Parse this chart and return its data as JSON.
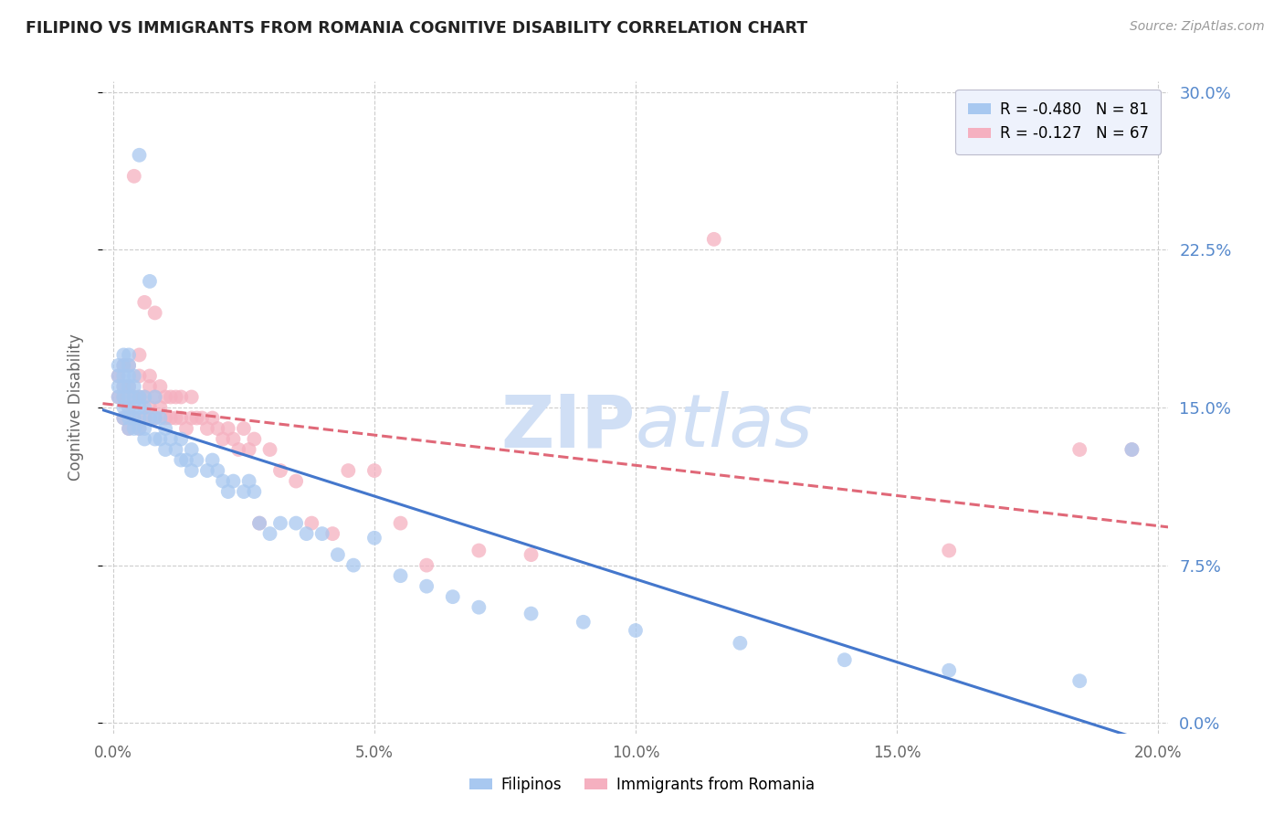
{
  "title": "FILIPINO VS IMMIGRANTS FROM ROMANIA COGNITIVE DISABILITY CORRELATION CHART",
  "source": "Source: ZipAtlas.com",
  "ylabel": "Cognitive Disability",
  "xlabel_ticks": [
    "0.0%",
    "5.0%",
    "10.0%",
    "15.0%",
    "20.0%"
  ],
  "xlabel_vals": [
    0.0,
    0.05,
    0.1,
    0.15,
    0.2
  ],
  "ylabel_ticks": [
    "0.0%",
    "7.5%",
    "15.0%",
    "22.5%",
    "30.0%"
  ],
  "ylabel_vals": [
    0.0,
    0.075,
    0.15,
    0.225,
    0.3
  ],
  "xlim": [
    -0.002,
    0.202
  ],
  "ylim": [
    -0.005,
    0.305
  ],
  "filipino_R": -0.48,
  "filipino_N": 81,
  "romania_R": -0.127,
  "romania_N": 67,
  "filipino_color": "#a8c8f0",
  "romania_color": "#f5b0c0",
  "trendline_filipino_color": "#4477cc",
  "trendline_romania_color": "#e06878",
  "watermark_top": "ZIP",
  "watermark_bottom": "atlas",
  "watermark_color": "#d0dff5",
  "background_color": "#ffffff",
  "grid_color": "#cccccc",
  "title_color": "#222222",
  "axis_label_color": "#666666",
  "right_tick_color": "#5588cc",
  "legend_box_color": "#eef2fc",
  "filipino_x": [
    0.001,
    0.001,
    0.001,
    0.001,
    0.002,
    0.002,
    0.002,
    0.002,
    0.002,
    0.002,
    0.002,
    0.003,
    0.003,
    0.003,
    0.003,
    0.003,
    0.003,
    0.003,
    0.003,
    0.004,
    0.004,
    0.004,
    0.004,
    0.004,
    0.004,
    0.005,
    0.005,
    0.005,
    0.005,
    0.005,
    0.006,
    0.006,
    0.006,
    0.006,
    0.007,
    0.007,
    0.008,
    0.008,
    0.008,
    0.009,
    0.009,
    0.01,
    0.01,
    0.011,
    0.012,
    0.013,
    0.013,
    0.014,
    0.015,
    0.015,
    0.016,
    0.018,
    0.019,
    0.02,
    0.021,
    0.022,
    0.023,
    0.025,
    0.026,
    0.027,
    0.028,
    0.03,
    0.032,
    0.035,
    0.037,
    0.04,
    0.043,
    0.046,
    0.05,
    0.055,
    0.06,
    0.065,
    0.07,
    0.08,
    0.09,
    0.1,
    0.12,
    0.14,
    0.16,
    0.185,
    0.195
  ],
  "filipino_y": [
    0.155,
    0.16,
    0.165,
    0.17,
    0.145,
    0.15,
    0.155,
    0.16,
    0.165,
    0.17,
    0.175,
    0.14,
    0.145,
    0.15,
    0.155,
    0.16,
    0.165,
    0.17,
    0.175,
    0.14,
    0.145,
    0.15,
    0.155,
    0.16,
    0.165,
    0.14,
    0.145,
    0.15,
    0.155,
    0.27,
    0.135,
    0.14,
    0.15,
    0.155,
    0.145,
    0.21,
    0.135,
    0.145,
    0.155,
    0.135,
    0.145,
    0.13,
    0.14,
    0.135,
    0.13,
    0.125,
    0.135,
    0.125,
    0.12,
    0.13,
    0.125,
    0.12,
    0.125,
    0.12,
    0.115,
    0.11,
    0.115,
    0.11,
    0.115,
    0.11,
    0.095,
    0.09,
    0.095,
    0.095,
    0.09,
    0.09,
    0.08,
    0.075,
    0.088,
    0.07,
    0.065,
    0.06,
    0.055,
    0.052,
    0.048,
    0.044,
    0.038,
    0.03,
    0.025,
    0.02,
    0.13
  ],
  "romania_x": [
    0.001,
    0.001,
    0.002,
    0.002,
    0.002,
    0.002,
    0.003,
    0.003,
    0.003,
    0.003,
    0.004,
    0.004,
    0.004,
    0.005,
    0.005,
    0.005,
    0.005,
    0.006,
    0.006,
    0.006,
    0.007,
    0.007,
    0.007,
    0.008,
    0.008,
    0.008,
    0.009,
    0.009,
    0.01,
    0.01,
    0.011,
    0.011,
    0.012,
    0.012,
    0.013,
    0.013,
    0.014,
    0.015,
    0.015,
    0.016,
    0.017,
    0.018,
    0.019,
    0.02,
    0.021,
    0.022,
    0.023,
    0.024,
    0.025,
    0.026,
    0.027,
    0.028,
    0.03,
    0.032,
    0.035,
    0.038,
    0.042,
    0.045,
    0.05,
    0.055,
    0.06,
    0.07,
    0.08,
    0.115,
    0.16,
    0.185,
    0.195
  ],
  "romania_y": [
    0.155,
    0.165,
    0.145,
    0.155,
    0.16,
    0.17,
    0.14,
    0.15,
    0.16,
    0.17,
    0.145,
    0.155,
    0.26,
    0.14,
    0.155,
    0.165,
    0.175,
    0.145,
    0.155,
    0.2,
    0.15,
    0.16,
    0.165,
    0.145,
    0.155,
    0.195,
    0.15,
    0.16,
    0.145,
    0.155,
    0.145,
    0.155,
    0.145,
    0.155,
    0.145,
    0.155,
    0.14,
    0.145,
    0.155,
    0.145,
    0.145,
    0.14,
    0.145,
    0.14,
    0.135,
    0.14,
    0.135,
    0.13,
    0.14,
    0.13,
    0.135,
    0.095,
    0.13,
    0.12,
    0.115,
    0.095,
    0.09,
    0.12,
    0.12,
    0.095,
    0.075,
    0.082,
    0.08,
    0.23,
    0.082,
    0.13,
    0.13
  ]
}
